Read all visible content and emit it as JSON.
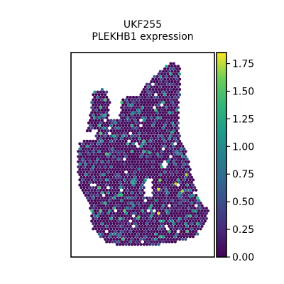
{
  "chart_data": {
    "type": "scatter",
    "title": "UKF255",
    "subtitle": "PLEKHB1 expression",
    "xlabel": "",
    "ylabel": "",
    "grid": false,
    "colormap": "viridis",
    "colorbar": {
      "vmin": 0.0,
      "vmax": 1.85,
      "ticks": [
        0.0,
        0.25,
        0.5,
        0.75,
        1.0,
        1.25,
        1.5,
        1.75
      ],
      "tick_labels": [
        "0.00",
        "0.25",
        "0.50",
        "0.75",
        "1.00",
        "1.25",
        "1.50",
        "1.75"
      ]
    },
    "background_value": 0.0,
    "highlight_spots": [
      {
        "x": 0.62,
        "y": 0.18,
        "value": 1.8
      },
      {
        "x": 0.62,
        "y": 0.31,
        "value": 1.78
      },
      {
        "x": 0.75,
        "y": 0.34,
        "value": 1.75
      },
      {
        "x": 0.8,
        "y": 0.3,
        "value": 1.72
      },
      {
        "x": 0.83,
        "y": 0.39,
        "value": 1.7
      },
      {
        "x": 0.63,
        "y": 0.36,
        "value": 1.62
      },
      {
        "x": 0.47,
        "y": 0.16,
        "value": 1.45
      },
      {
        "x": 0.34,
        "y": 0.28,
        "value": 1.4
      },
      {
        "x": 0.55,
        "y": 0.51,
        "value": 1.38
      },
      {
        "x": 0.72,
        "y": 0.62,
        "value": 1.3
      },
      {
        "x": 0.28,
        "y": 0.6,
        "value": 1.25
      },
      {
        "x": 0.9,
        "y": 0.19,
        "value": 1.2
      },
      {
        "x": 0.52,
        "y": 0.36,
        "value": 1.15
      },
      {
        "x": 0.42,
        "y": 0.72,
        "value": 1.12
      },
      {
        "x": 0.17,
        "y": 0.7,
        "value": 1.1
      },
      {
        "x": 0.69,
        "y": 0.46,
        "value": 1.05
      },
      {
        "x": 0.6,
        "y": 0.25,
        "value": 1.0
      },
      {
        "x": 0.38,
        "y": 0.21,
        "value": 0.98
      },
      {
        "x": 0.86,
        "y": 0.27,
        "value": 0.95
      },
      {
        "x": 0.47,
        "y": 0.42,
        "value": 0.92
      }
    ],
    "colors": {
      "low": "#440154",
      "mid": "#21918c",
      "high": "#fde725",
      "frame": "#000000"
    }
  }
}
